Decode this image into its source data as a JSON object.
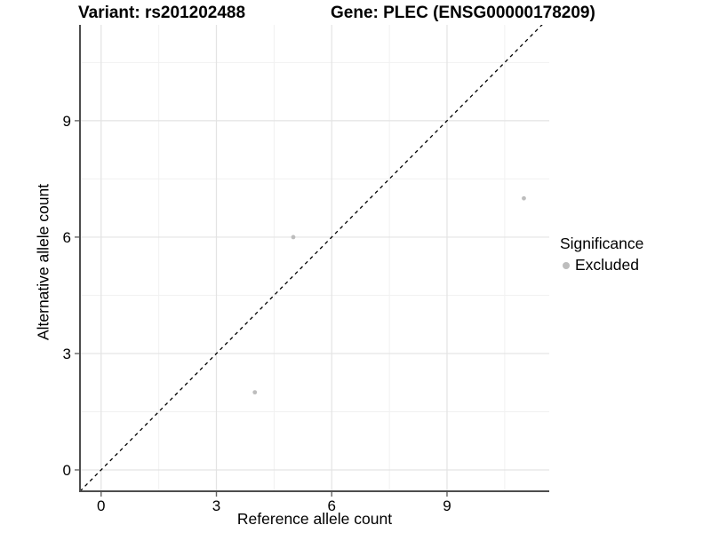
{
  "chart_data": {
    "type": "scatter",
    "title_left": "Variant: rs201202488",
    "title_right": "Gene: PLEC (ENSG00000178209)",
    "xlabel": "Reference allele count",
    "ylabel": "Alternative allele count",
    "xlim": [
      -0.55,
      11.66
    ],
    "ylim": [
      -0.55,
      11.47
    ],
    "x_ticks": [
      0,
      3,
      6,
      9
    ],
    "y_ticks": [
      0,
      3,
      6,
      9
    ],
    "x_minor_ticks": [
      1.5,
      4.5,
      7.5,
      10.5
    ],
    "y_minor_ticks": [
      1.5,
      4.5,
      7.5,
      10.5
    ],
    "grid": "major and minor gridlines on white background",
    "legend": {
      "title": "Significance",
      "position": "right",
      "items": [
        {
          "label": "Excluded",
          "color": "#bdbdbd"
        }
      ]
    },
    "series": [
      {
        "name": "Excluded",
        "color": "#bdbdbd",
        "marker": "circle",
        "points": [
          [
            4,
            2
          ],
          [
            5,
            6
          ],
          [
            11,
            7
          ]
        ]
      }
    ],
    "reference_line": {
      "type": "identity y=x",
      "style": "dashed",
      "color": "#000000"
    },
    "style": {
      "grid_major_color": "#e3e3e3",
      "grid_minor_color": "#f1f1f1",
      "axis_color": "#4d4d4d",
      "tick_color": "#666666",
      "text_color": "#000000",
      "background": "#ffffff"
    }
  }
}
